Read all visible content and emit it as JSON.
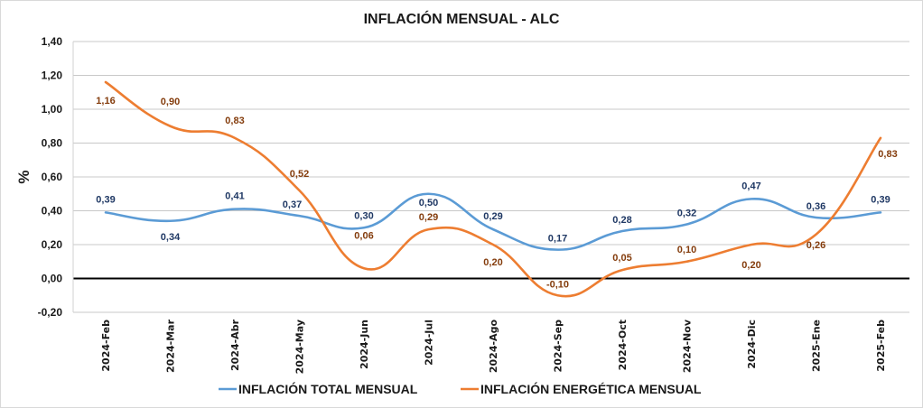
{
  "chart_data": {
    "type": "line",
    "title": "INFLACIÓN MENSUAL - ALC",
    "xlabel": "",
    "ylabel": "%",
    "ylim": [
      -0.2,
      1.4
    ],
    "yticks": [
      -0.2,
      0.0,
      0.2,
      0.4,
      0.6,
      0.8,
      1.0,
      1.2,
      1.4
    ],
    "ytick_labels": [
      "-0,20",
      "0,00",
      "0,20",
      "0,40",
      "0,60",
      "0,80",
      "1,00",
      "1,20",
      "1,40"
    ],
    "grid": true,
    "legend_position": "bottom",
    "categories": [
      "2024-Feb",
      "2024-Mar",
      "2024-Abr",
      "2024-May",
      "2024-Jun",
      "2024-Jul",
      "2024-Ago",
      "2024-Sep",
      "2024-Oct",
      "2024-Nov",
      "2024-Dic",
      "2025-Ene",
      "2025-Feb"
    ],
    "series": [
      {
        "name": "INFLACIÓN TOTAL MENSUAL",
        "color": "#5b9bd5",
        "label_color": "#1f3864",
        "values": [
          0.39,
          0.34,
          0.41,
          0.37,
          0.3,
          0.5,
          0.29,
          0.17,
          0.28,
          0.32,
          0.47,
          0.36,
          0.39
        ],
        "labels": [
          "0,39",
          "0,34",
          "0,41",
          "0,37",
          "0,30",
          "0,50",
          "0,29",
          "0,17",
          "0,28",
          "0,32",
          "0,47",
          "0,36",
          "0,39"
        ]
      },
      {
        "name": "INFLACIÓN ENERGÉTICA MENSUAL",
        "color": "#ed7d31",
        "label_color": "#843c0c",
        "values": [
          1.16,
          0.9,
          0.83,
          0.52,
          0.06,
          0.29,
          0.2,
          -0.1,
          0.05,
          0.1,
          0.2,
          0.26,
          0.83
        ],
        "labels": [
          "1,16",
          "0,90",
          "0,83",
          "0,52",
          "0,06",
          "0,29",
          "0,20",
          "-0,10",
          "0,05",
          "0,10",
          "0,20",
          "0,26",
          "0,83"
        ]
      }
    ]
  }
}
